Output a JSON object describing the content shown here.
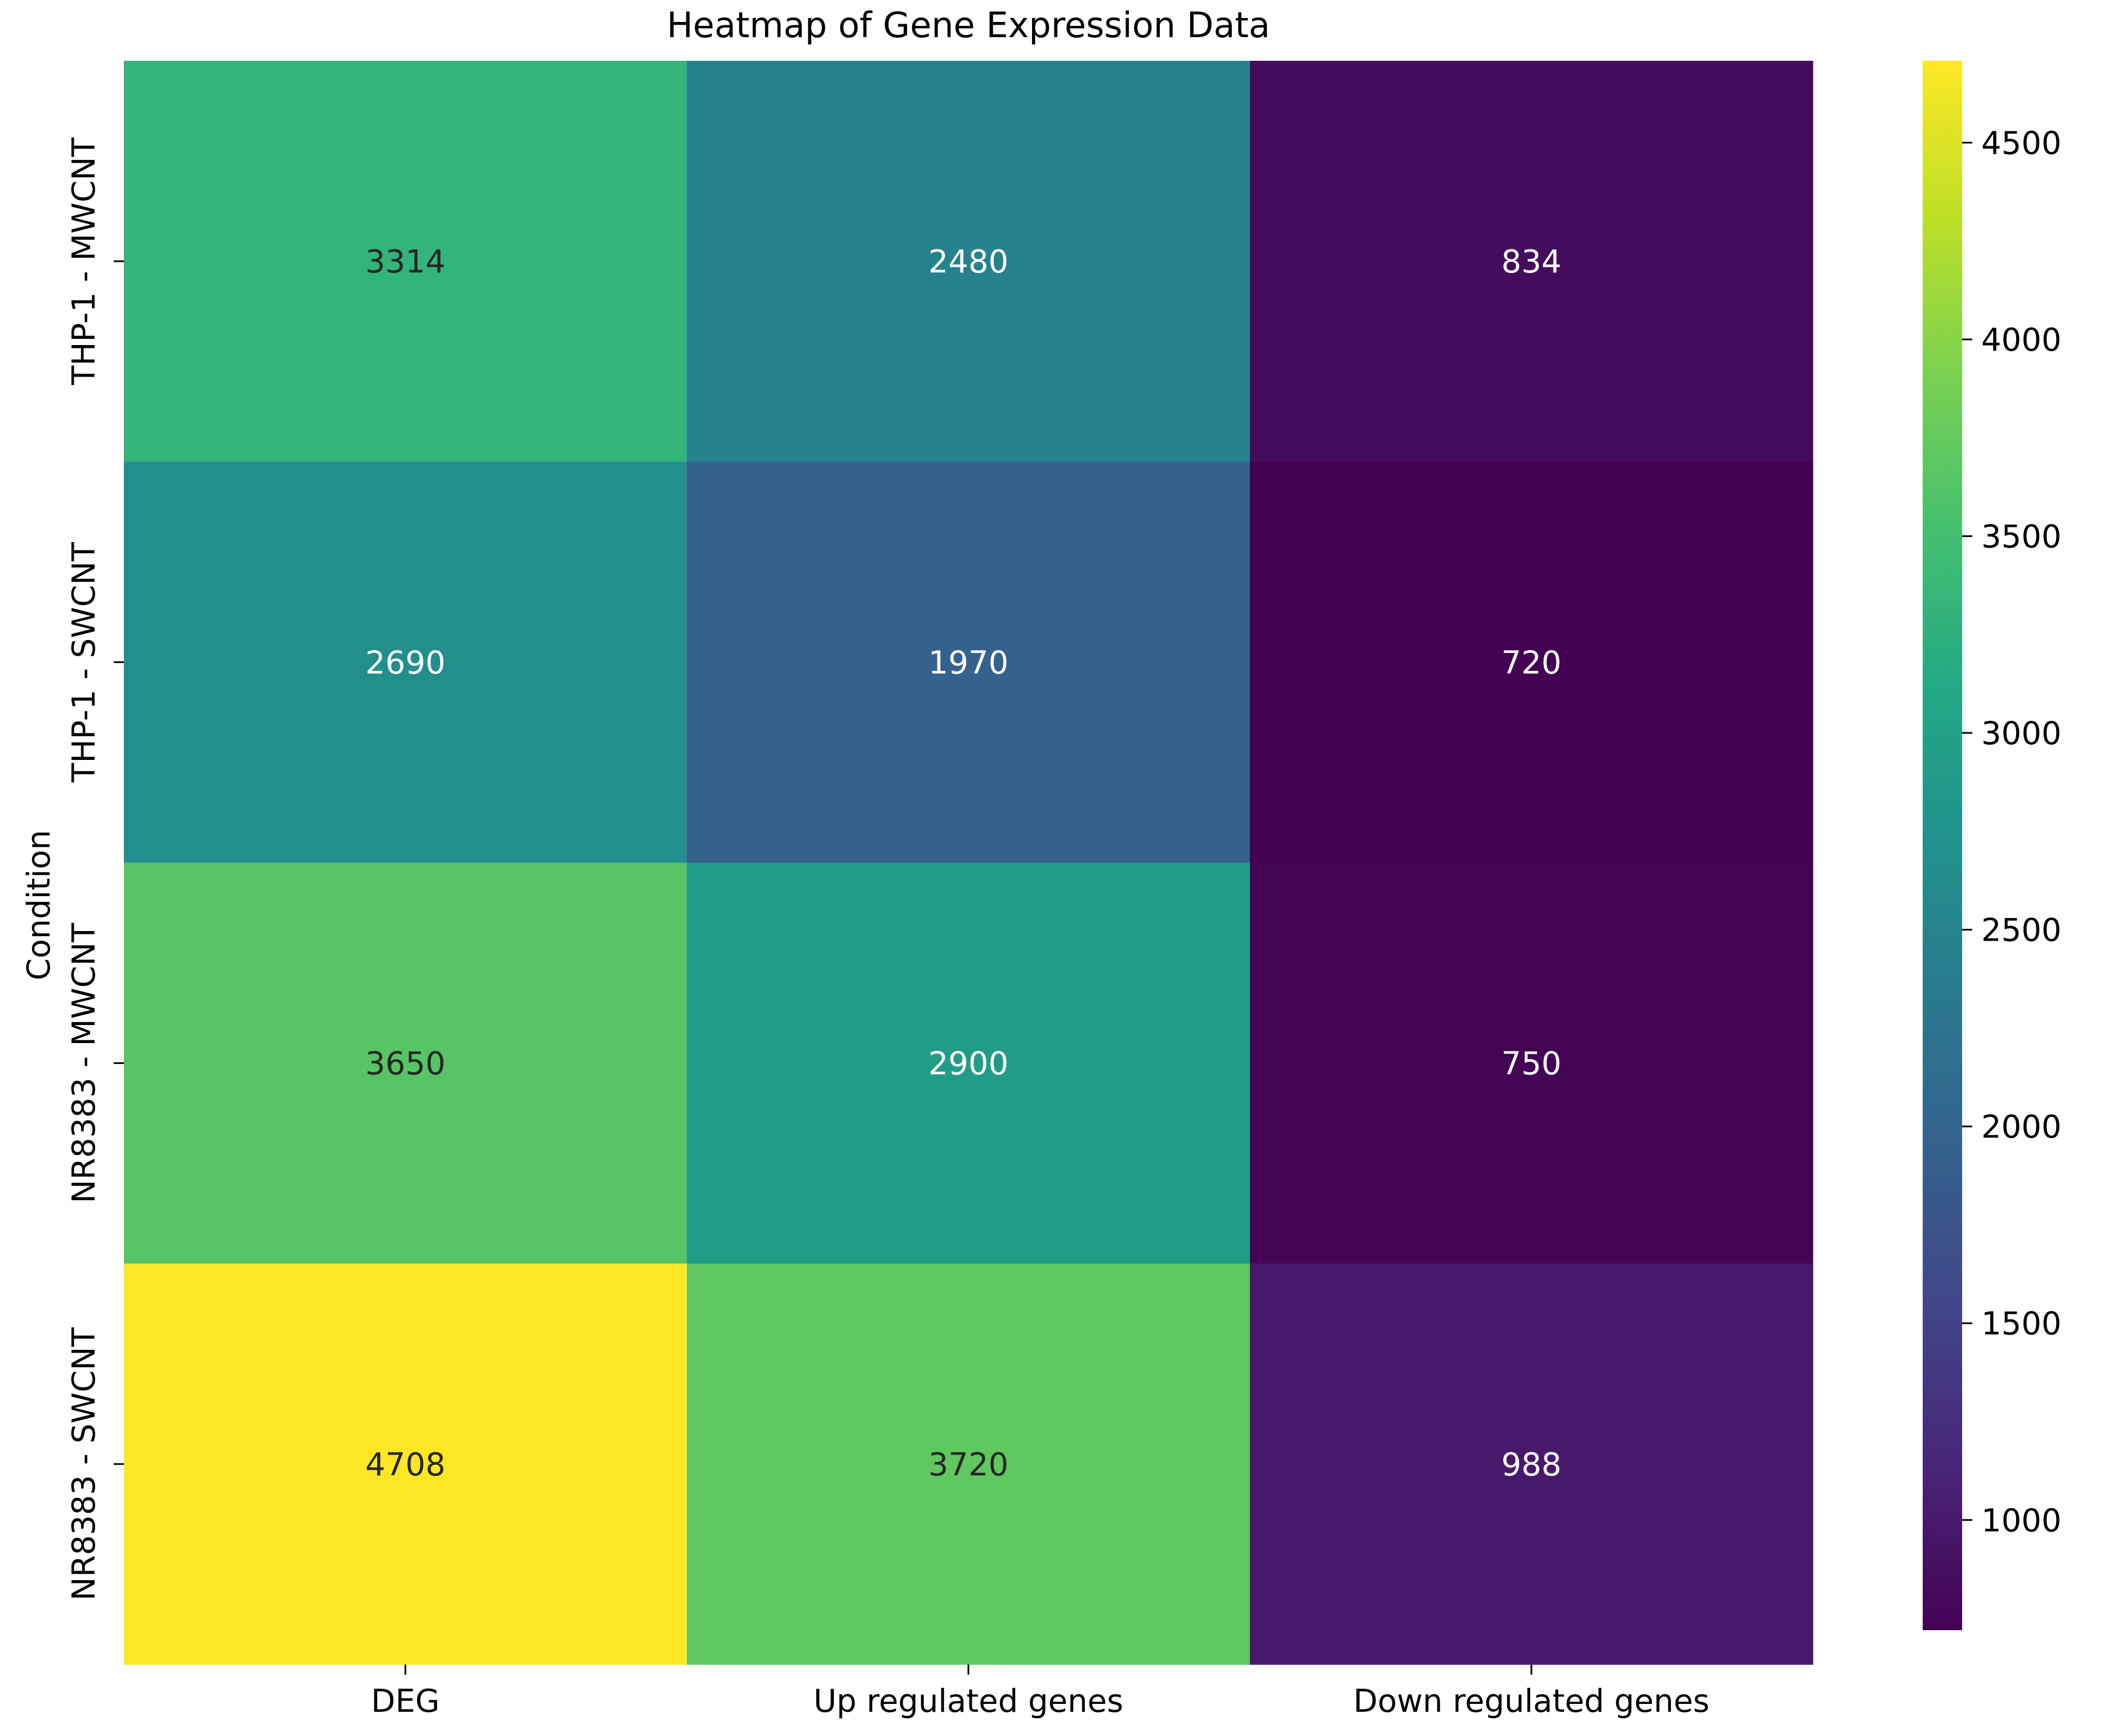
{
  "chart_data": {
    "type": "heatmap",
    "title": "Heatmap of Gene Expression Data",
    "ylabel": "Condition",
    "xlabel": "",
    "rows": [
      "THP-1 - MWCNT",
      "THP-1 - SWCNT",
      "NR8383 - MWCNT",
      "NR8383 - SWCNT"
    ],
    "columns": [
      "DEG",
      "Up regulated genes",
      "Down regulated genes"
    ],
    "values": [
      [
        3314,
        2480,
        834
      ],
      [
        2690,
        1970,
        720
      ],
      [
        3650,
        2900,
        750
      ],
      [
        4708,
        3720,
        988
      ]
    ],
    "colormap": "viridis",
    "value_range": [
      720,
      4708
    ],
    "colorbar_ticks": [
      1000,
      1500,
      2000,
      2500,
      3000,
      3500,
      4000,
      4500
    ],
    "annotations": true
  }
}
